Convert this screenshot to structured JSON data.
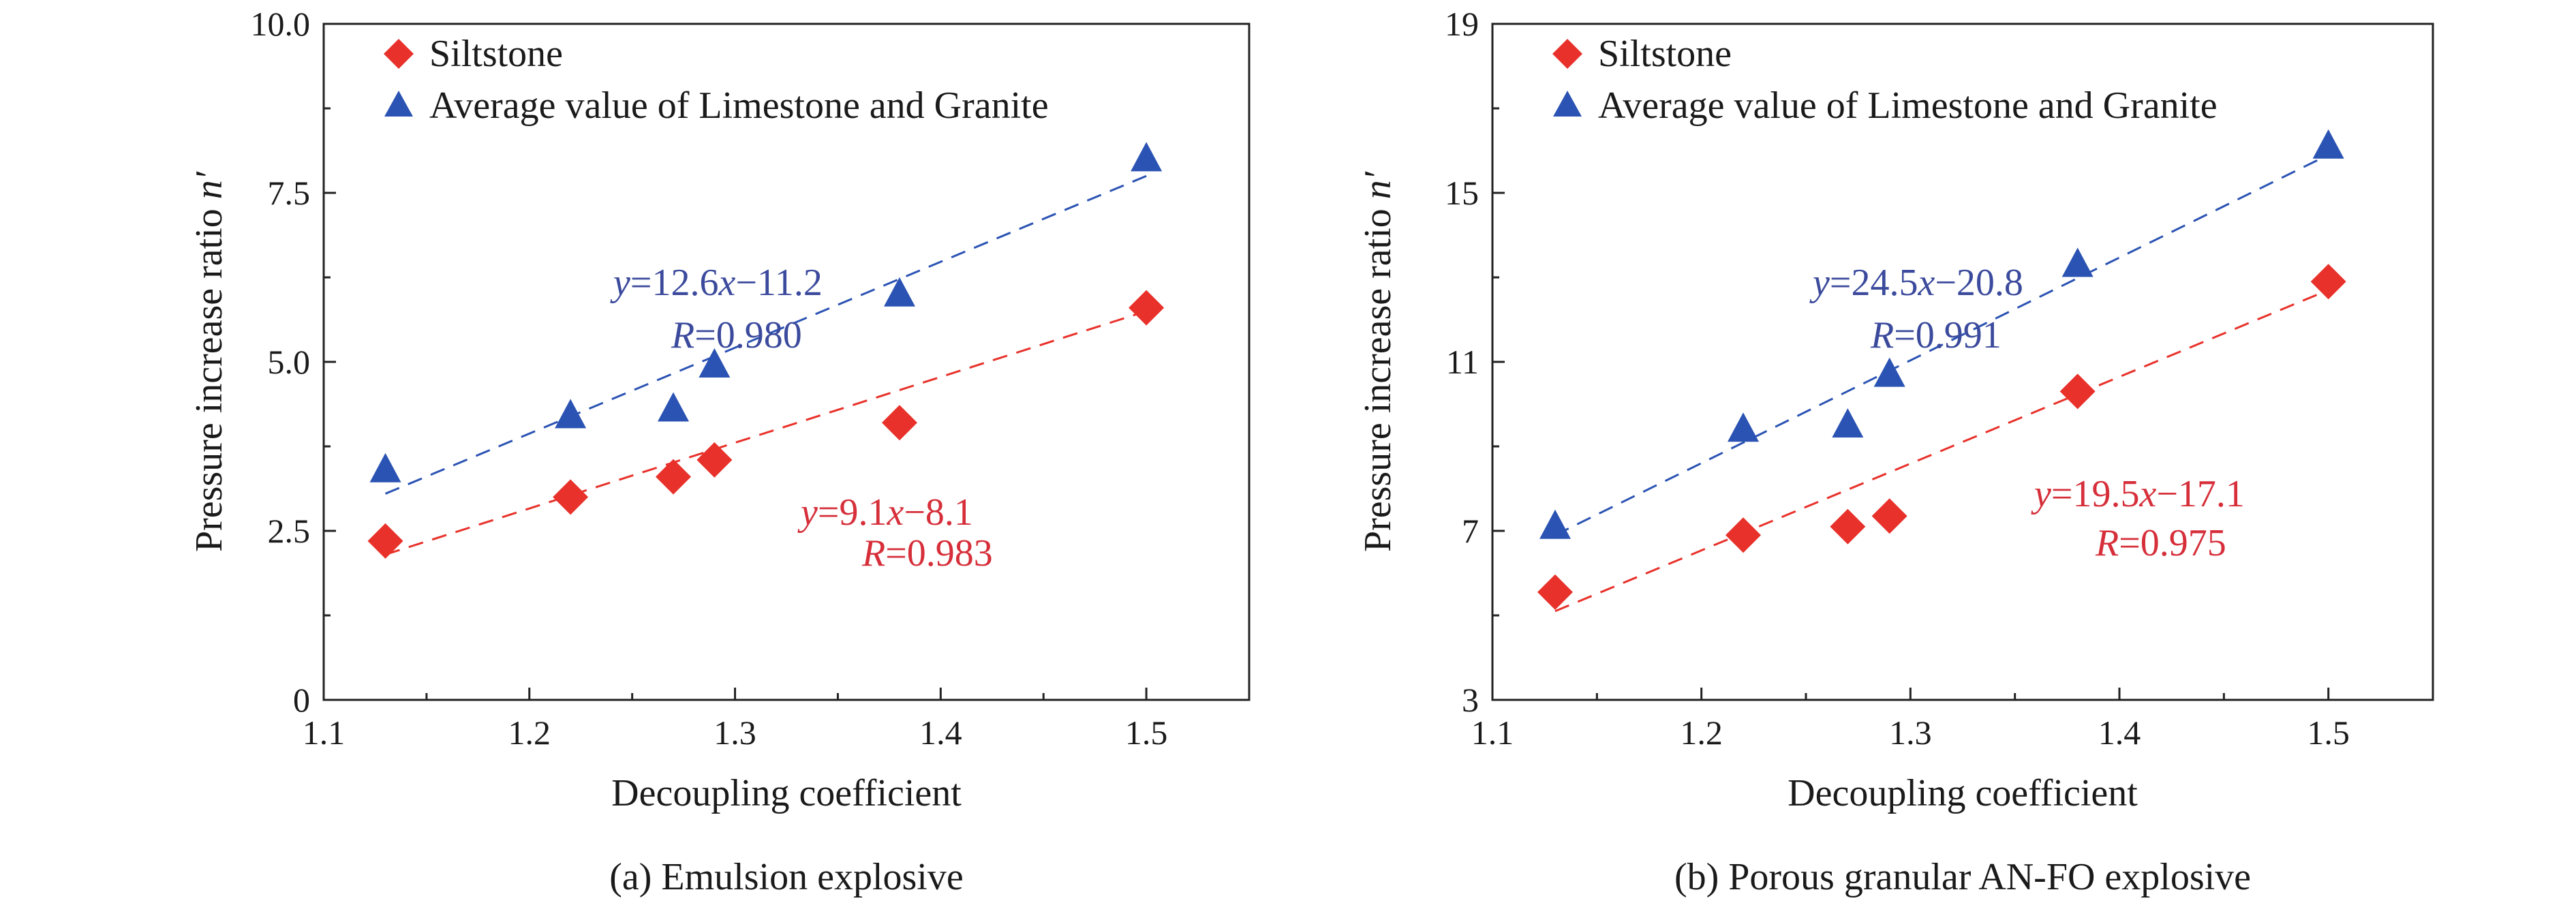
{
  "colors": {
    "siltstone": "#e8312a",
    "average": "#2b53b3",
    "eq_blue": "#3b4a9c",
    "eq_red": "#d62f3a"
  },
  "chart_data": [
    {
      "type": "scatter",
      "caption": "(a) Emulsion explosive",
      "xlabel": "Decoupling coefficient",
      "ylabel_main": "Pressure increase ratio ",
      "ylabel_var": "n′",
      "xlim": [
        1.1,
        1.55
      ],
      "ylim": [
        0,
        10
      ],
      "xticks": [
        "1.1",
        "1.2",
        "1.3",
        "1.4",
        "1.5"
      ],
      "yticks": [
        "0",
        "2.5",
        "5.0",
        "7.5",
        "10.0"
      ],
      "legend_position": "top-left",
      "series": [
        {
          "name": "Siltstone",
          "marker": "diamond",
          "x": [
            1.13,
            1.22,
            1.27,
            1.29,
            1.38,
            1.5
          ],
          "y": [
            2.35,
            3.0,
            3.3,
            3.55,
            4.1,
            5.8
          ],
          "fit": {
            "x": [
              1.13,
              1.5
            ],
            "y": [
              2.15,
              5.75
            ],
            "eq_var": "y",
            "eq_mid": "=9.1",
            "eq_var2": "x",
            "eq_tail": "−8.1",
            "r_var": "R",
            "r_value": "=0.983"
          }
        },
        {
          "name": "Average value of Limestone and Granite",
          "marker": "triangle",
          "x": [
            1.13,
            1.22,
            1.27,
            1.29,
            1.38,
            1.5
          ],
          "y": [
            3.4,
            4.2,
            4.3,
            4.95,
            6.0,
            8.0
          ],
          "fit": {
            "x": [
              1.13,
              1.5
            ],
            "y": [
              3.05,
              7.75
            ],
            "eq_var": "y",
            "eq_mid": "=12.6",
            "eq_var2": "x",
            "eq_tail": "−11.2",
            "r_var": "R",
            "r_value": "=0.980"
          }
        }
      ]
    },
    {
      "type": "scatter",
      "caption": "(b) Porous granular AN-FO explosive",
      "xlabel": "Decoupling coefficient",
      "ylabel_main": "Pressure increase ratio ",
      "ylabel_var": "n′",
      "xlim": [
        1.1,
        1.55
      ],
      "ylim": [
        3,
        19
      ],
      "xticks": [
        "1.1",
        "1.2",
        "1.3",
        "1.4",
        "1.5"
      ],
      "yticks": [
        "3",
        "7",
        "11",
        "15",
        "19"
      ],
      "legend_position": "top-left",
      "series": [
        {
          "name": "Siltstone",
          "marker": "diamond",
          "x": [
            1.13,
            1.22,
            1.27,
            1.29,
            1.38,
            1.5
          ],
          "y": [
            5.55,
            6.9,
            7.1,
            7.35,
            10.3,
            12.9
          ],
          "fit": {
            "x": [
              1.13,
              1.5
            ],
            "y": [
              5.1,
              12.7
            ],
            "eq_var": "y",
            "eq_mid": "=19.5",
            "eq_var2": "x",
            "eq_tail": "−17.1",
            "r_var": "R",
            "r_value": "=0.975"
          }
        },
        {
          "name": "Average value of Limestone and Granite",
          "marker": "triangle",
          "x": [
            1.13,
            1.22,
            1.27,
            1.29,
            1.38,
            1.5
          ],
          "y": [
            7.1,
            9.4,
            9.5,
            10.7,
            13.3,
            16.1
          ],
          "fit": {
            "x": [
              1.13,
              1.5
            ],
            "y": [
              6.9,
              15.9
            ],
            "eq_var": "y",
            "eq_mid": "=24.5",
            "eq_var2": "x",
            "eq_tail": "−20.8",
            "r_var": "R",
            "r_value": "=0.991"
          }
        }
      ]
    }
  ]
}
